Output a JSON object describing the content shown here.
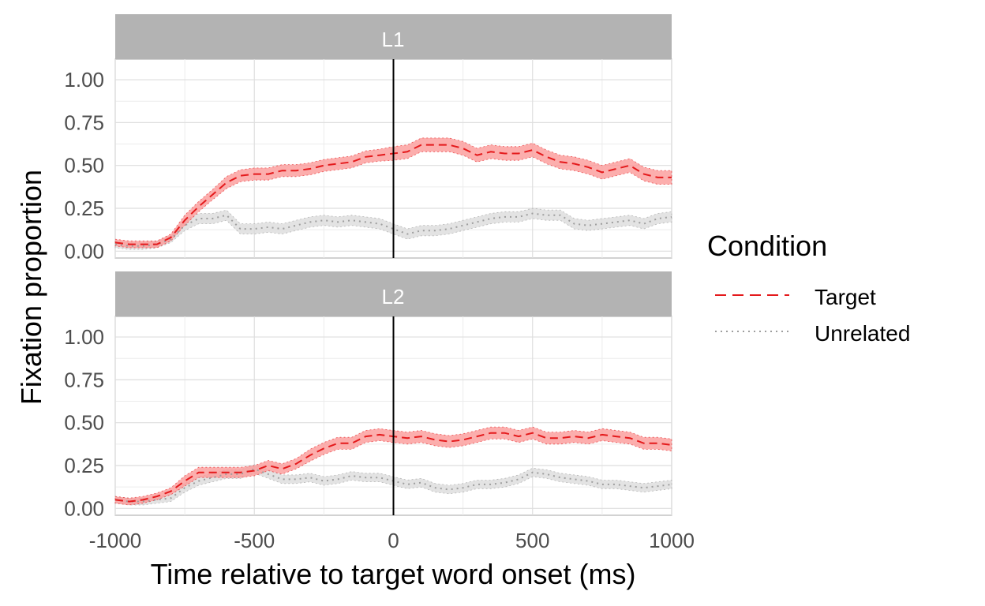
{
  "chart_data": {
    "type": "line",
    "x_axis": {
      "label": "Time relative to target word onset (ms)",
      "range": [
        -1000,
        1000
      ],
      "ticks": [
        -1000,
        -500,
        0,
        500,
        1000
      ],
      "tick_labels": [
        "-1000",
        "-500",
        "0",
        "500",
        "1000"
      ]
    },
    "y_axis": {
      "label": "Fixation proportion",
      "range": [
        -0.04,
        1.12
      ],
      "ticks": [
        0,
        0.25,
        0.5,
        0.75,
        1
      ],
      "tick_labels": [
        "0.00",
        "0.25",
        "0.50",
        "0.75",
        "1.00"
      ]
    },
    "grid": true,
    "vline_x": 0,
    "legend": {
      "title": "Condition",
      "position": "right",
      "items": [
        {
          "label": "Target",
          "color": "#e41a1c",
          "linetype": "dashed"
        },
        {
          "label": "Unrelated",
          "color": "#9e9e9e",
          "linetype": "dotted"
        }
      ]
    },
    "colors": {
      "target_line": "#e41a1c",
      "target_band": "#fb9a99",
      "unrelated_line": "#9e9e9e",
      "unrelated_band": "#d9d9d9",
      "strip": "#b3b3b3"
    },
    "panels": [
      {
        "label": "L1",
        "series": [
          {
            "name": "Target",
            "x": [
              -1000,
              -950,
              -900,
              -850,
              -800,
              -750,
              -700,
              -650,
              -600,
              -550,
              -500,
              -450,
              -400,
              -350,
              -300,
              -250,
              -200,
              -150,
              -100,
              -50,
              0,
              50,
              100,
              150,
              200,
              250,
              300,
              350,
              400,
              450,
              500,
              550,
              600,
              650,
              700,
              750,
              800,
              850,
              900,
              950,
              1000
            ],
            "y": [
              0.05,
              0.04,
              0.04,
              0.04,
              0.08,
              0.18,
              0.26,
              0.33,
              0.4,
              0.44,
              0.45,
              0.45,
              0.47,
              0.47,
              0.48,
              0.5,
              0.51,
              0.52,
              0.55,
              0.56,
              0.57,
              0.58,
              0.62,
              0.62,
              0.62,
              0.6,
              0.56,
              0.58,
              0.57,
              0.57,
              0.59,
              0.55,
              0.52,
              0.51,
              0.49,
              0.46,
              0.48,
              0.5,
              0.45,
              0.43,
              0.43
            ],
            "se": [
              0.02,
              0.02,
              0.02,
              0.02,
              0.02,
              0.03,
              0.03,
              0.03,
              0.035,
              0.035,
              0.035,
              0.035,
              0.035,
              0.035,
              0.035,
              0.035,
              0.035,
              0.035,
              0.035,
              0.035,
              0.04,
              0.04,
              0.04,
              0.04,
              0.04,
              0.04,
              0.04,
              0.04,
              0.04,
              0.04,
              0.04,
              0.04,
              0.04,
              0.04,
              0.04,
              0.04,
              0.04,
              0.04,
              0.04,
              0.04,
              0.04
            ]
          },
          {
            "name": "Unrelated",
            "x": [
              -1000,
              -950,
              -900,
              -850,
              -800,
              -750,
              -700,
              -650,
              -600,
              -550,
              -500,
              -450,
              -400,
              -350,
              -300,
              -250,
              -200,
              -150,
              -100,
              -50,
              0,
              50,
              100,
              150,
              200,
              250,
              300,
              350,
              400,
              450,
              500,
              550,
              600,
              650,
              700,
              750,
              800,
              850,
              900,
              950,
              1000
            ],
            "y": [
              0.04,
              0.03,
              0.03,
              0.04,
              0.07,
              0.15,
              0.19,
              0.19,
              0.21,
              0.13,
              0.13,
              0.14,
              0.13,
              0.15,
              0.17,
              0.18,
              0.17,
              0.18,
              0.17,
              0.16,
              0.13,
              0.1,
              0.12,
              0.12,
              0.13,
              0.15,
              0.17,
              0.19,
              0.2,
              0.2,
              0.22,
              0.21,
              0.21,
              0.16,
              0.15,
              0.16,
              0.17,
              0.18,
              0.16,
              0.19,
              0.2
            ],
            "se": [
              0.02,
              0.02,
              0.02,
              0.02,
              0.02,
              0.03,
              0.03,
              0.03,
              0.03,
              0.03,
              0.03,
              0.03,
              0.03,
              0.03,
              0.03,
              0.03,
              0.03,
              0.03,
              0.03,
              0.03,
              0.03,
              0.03,
              0.03,
              0.03,
              0.03,
              0.03,
              0.03,
              0.03,
              0.03,
              0.03,
              0.03,
              0.03,
              0.03,
              0.03,
              0.03,
              0.03,
              0.03,
              0.03,
              0.03,
              0.03,
              0.03
            ]
          }
        ]
      },
      {
        "label": "L2",
        "series": [
          {
            "name": "Target",
            "x": [
              -1000,
              -950,
              -900,
              -850,
              -800,
              -750,
              -700,
              -650,
              -600,
              -550,
              -500,
              -450,
              -400,
              -350,
              -300,
              -250,
              -200,
              -150,
              -100,
              -50,
              0,
              50,
              100,
              150,
              200,
              250,
              300,
              350,
              400,
              450,
              500,
              550,
              600,
              650,
              700,
              750,
              800,
              850,
              900,
              950,
              1000
            ],
            "y": [
              0.05,
              0.04,
              0.05,
              0.07,
              0.1,
              0.16,
              0.21,
              0.21,
              0.21,
              0.21,
              0.22,
              0.25,
              0.23,
              0.26,
              0.31,
              0.35,
              0.38,
              0.38,
              0.42,
              0.43,
              0.42,
              0.41,
              0.42,
              0.4,
              0.39,
              0.4,
              0.42,
              0.44,
              0.44,
              0.42,
              0.44,
              0.41,
              0.41,
              0.42,
              0.41,
              0.43,
              0.42,
              0.41,
              0.38,
              0.38,
              0.37
            ],
            "se": [
              0.02,
              0.02,
              0.02,
              0.02,
              0.02,
              0.03,
              0.03,
              0.03,
              0.03,
              0.03,
              0.03,
              0.03,
              0.03,
              0.03,
              0.035,
              0.035,
              0.035,
              0.035,
              0.035,
              0.035,
              0.035,
              0.035,
              0.035,
              0.035,
              0.035,
              0.035,
              0.035,
              0.035,
              0.035,
              0.035,
              0.035,
              0.035,
              0.035,
              0.035,
              0.035,
              0.035,
              0.035,
              0.035,
              0.035,
              0.035,
              0.035
            ]
          },
          {
            "name": "Unrelated",
            "x": [
              -1000,
              -950,
              -900,
              -850,
              -800,
              -750,
              -700,
              -650,
              -600,
              -550,
              -500,
              -450,
              -400,
              -350,
              -300,
              -250,
              -200,
              -150,
              -100,
              -50,
              0,
              50,
              100,
              150,
              200,
              250,
              300,
              350,
              400,
              450,
              500,
              550,
              600,
              650,
              700,
              750,
              800,
              850,
              900,
              950,
              1000
            ],
            "y": [
              0.05,
              0.04,
              0.04,
              0.05,
              0.06,
              0.12,
              0.16,
              0.18,
              0.2,
              0.2,
              0.23,
              0.2,
              0.17,
              0.17,
              0.18,
              0.16,
              0.17,
              0.19,
              0.18,
              0.18,
              0.16,
              0.14,
              0.15,
              0.12,
              0.11,
              0.12,
              0.14,
              0.14,
              0.15,
              0.17,
              0.21,
              0.2,
              0.18,
              0.17,
              0.16,
              0.14,
              0.14,
              0.13,
              0.12,
              0.13,
              0.14
            ],
            "se": [
              0.02,
              0.02,
              0.02,
              0.02,
              0.02,
              0.025,
              0.025,
              0.025,
              0.025,
              0.025,
              0.025,
              0.025,
              0.025,
              0.025,
              0.025,
              0.025,
              0.025,
              0.025,
              0.025,
              0.025,
              0.025,
              0.025,
              0.025,
              0.025,
              0.025,
              0.025,
              0.025,
              0.025,
              0.025,
              0.025,
              0.025,
              0.025,
              0.025,
              0.025,
              0.025,
              0.025,
              0.025,
              0.025,
              0.025,
              0.025,
              0.025
            ]
          }
        ]
      }
    ]
  }
}
